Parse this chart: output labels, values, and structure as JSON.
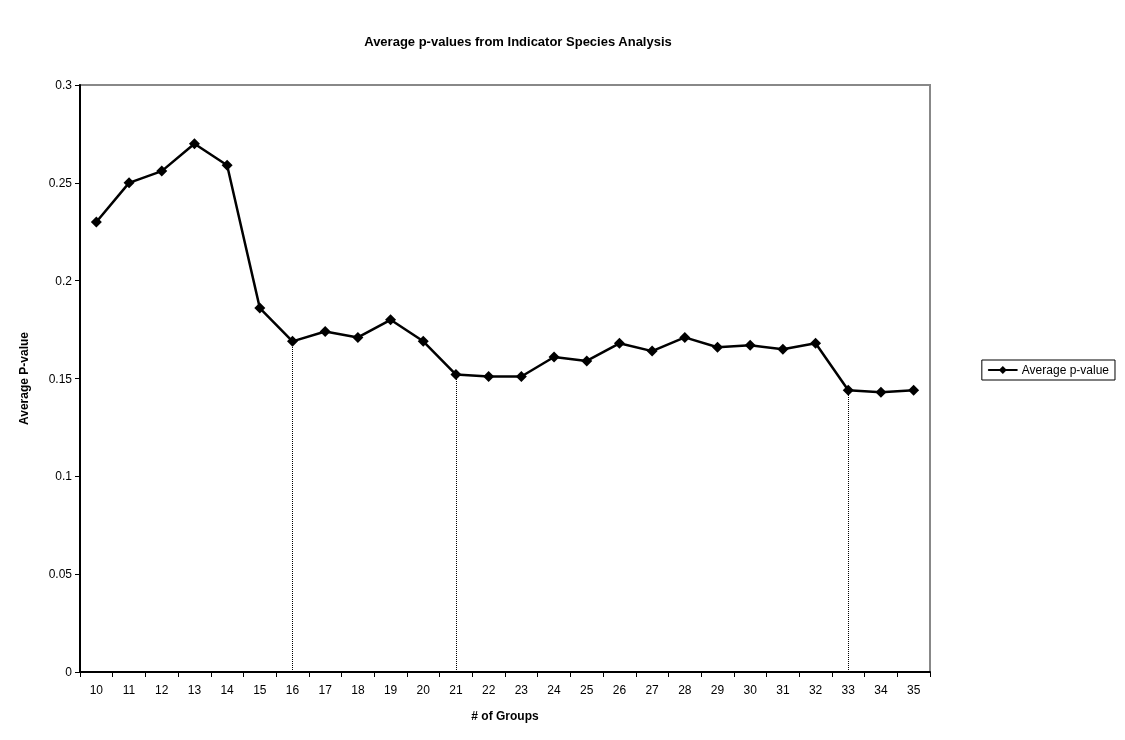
{
  "chart_data": {
    "type": "line",
    "title": "Average p-values from Indicator Species Analysis",
    "xlabel": "# of Groups",
    "ylabel": "Average P-value",
    "categories": [
      "10",
      "11",
      "12",
      "13",
      "14",
      "15",
      "16",
      "17",
      "18",
      "19",
      "20",
      "21",
      "22",
      "23",
      "24",
      "25",
      "26",
      "27",
      "28",
      "29",
      "30",
      "31",
      "32",
      "33",
      "34",
      "35"
    ],
    "series": [
      {
        "name": "Average p-value",
        "color": "#000000",
        "values": [
          0.23,
          0.25,
          0.256,
          0.27,
          0.259,
          0.186,
          0.169,
          0.174,
          0.171,
          0.18,
          0.169,
          0.152,
          0.151,
          0.151,
          0.161,
          0.159,
          0.168,
          0.164,
          0.171,
          0.166,
          0.167,
          0.165,
          0.168,
          0.144,
          0.143,
          0.144
        ]
      }
    ],
    "ylim": [
      0,
      0.3
    ],
    "yticks": [
      0,
      0.05,
      0.1,
      0.15,
      0.2,
      0.25,
      0.3
    ],
    "grid": false,
    "legend": "right",
    "marker": "diamond",
    "line_style": "solid",
    "ref_lines": [
      {
        "axis": "x",
        "value": "16",
        "label": null,
        "line_style": "dotted",
        "color": "#000000"
      },
      {
        "axis": "x",
        "value": "21",
        "label": null,
        "line_style": "dotted",
        "color": "#000000"
      },
      {
        "axis": "x",
        "value": "33",
        "label": null,
        "line_style": "dotted",
        "color": "#000000"
      }
    ]
  }
}
